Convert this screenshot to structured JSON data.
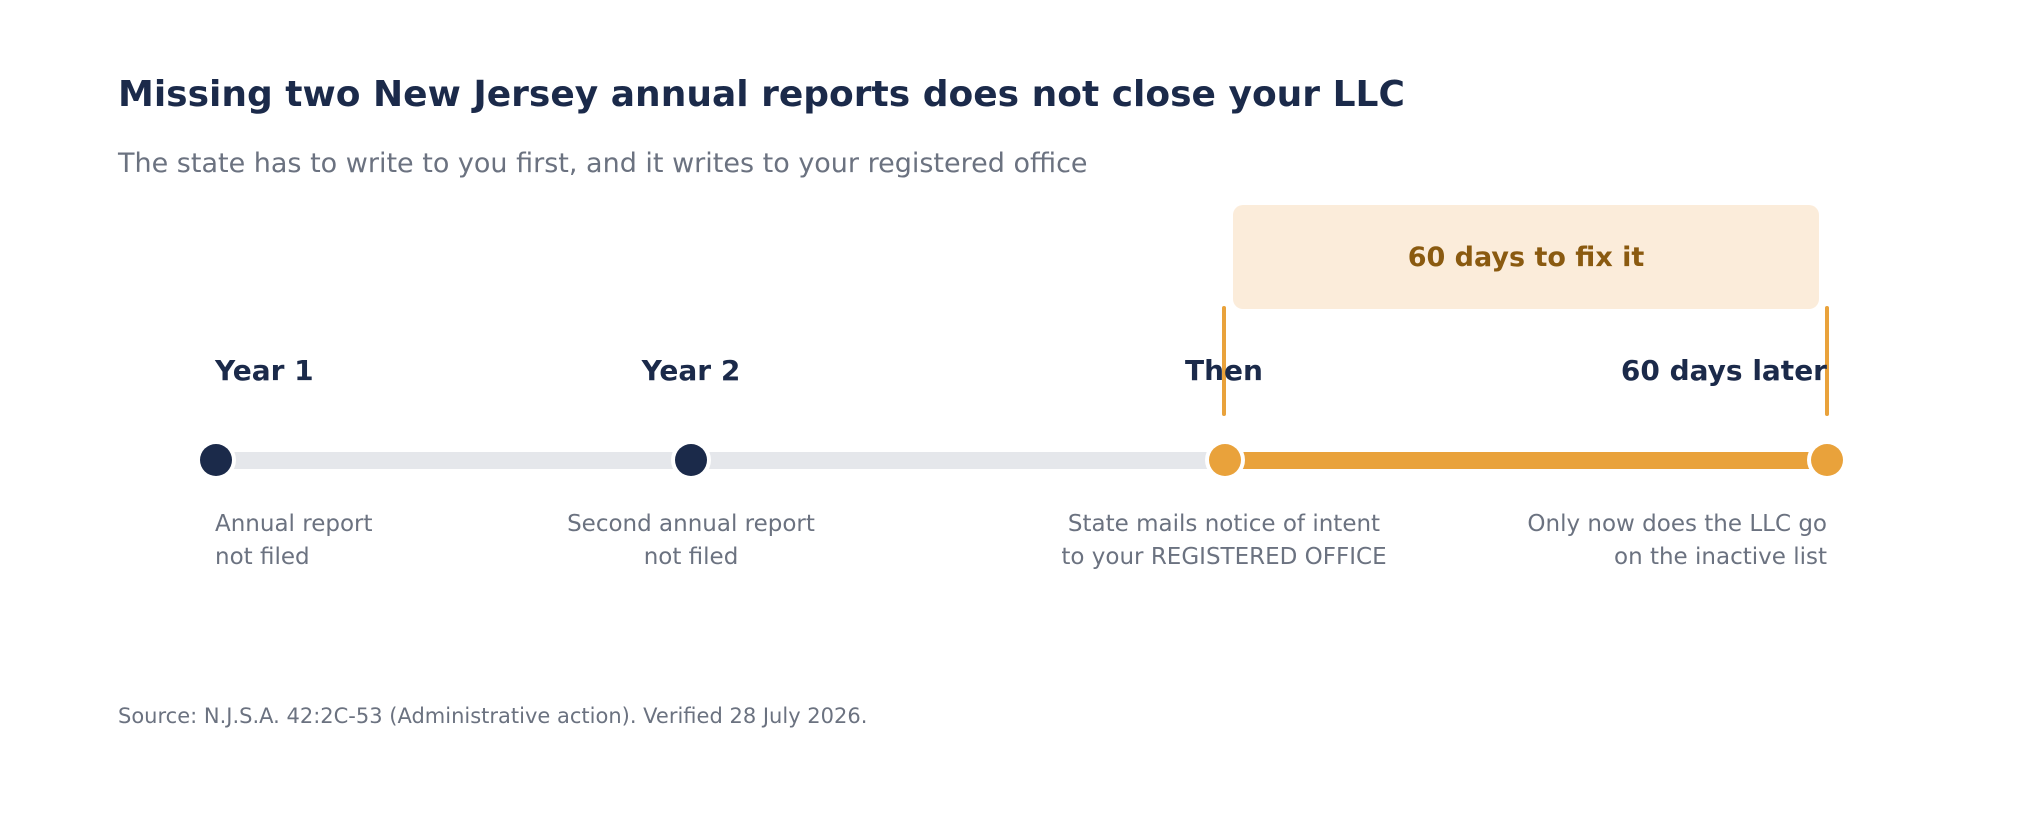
{
  "title": "Missing two New Jersey annual reports does not close your LLC",
  "subtitle": "The state has to write to you first, and it writes to your registered office",
  "callout": "60 days to fix it",
  "colors": {
    "navy": "#1b2a4a",
    "amber": "#e9a23b",
    "track_gray": "#e5e7eb",
    "callout_bg": "#fbecda",
    "callout_text": "#8a5a10",
    "muted_text": "#6b7280"
  },
  "milestones": [
    {
      "label": "Year 1",
      "desc": [
        "Annual report",
        "not filed"
      ]
    },
    {
      "label": "Year 2",
      "desc": [
        "Second annual report",
        "not filed"
      ]
    },
    {
      "label": "Then",
      "desc": [
        "State mails notice of intent",
        "to your REGISTERED OFFICE"
      ]
    },
    {
      "label": "60 days later",
      "desc": [
        "Only now does the LLC go",
        "on the inactive list"
      ]
    }
  ],
  "source": "Source: N.J.S.A. 42:2C-53 (Administrative action). Verified 28 July 2026."
}
